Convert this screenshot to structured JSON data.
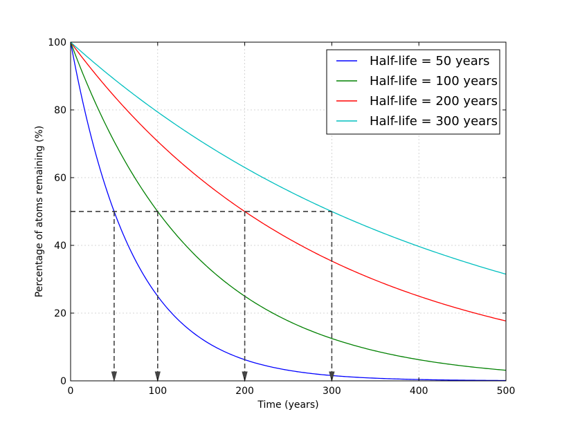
{
  "chart_data": {
    "type": "line",
    "title": "",
    "xlabel": "Time (years)",
    "ylabel": "Percentage of atoms remaining (%)",
    "xlim": [
      0,
      500
    ],
    "ylim": [
      0,
      100
    ],
    "xticks": [
      0,
      100,
      200,
      300,
      400,
      500
    ],
    "yticks": [
      0,
      20,
      40,
      60,
      80,
      100
    ],
    "grid": true,
    "legend_position": "top-right",
    "x": [
      0,
      25,
      50,
      75,
      100,
      125,
      150,
      175,
      200,
      225,
      250,
      275,
      300,
      325,
      350,
      375,
      400,
      425,
      450,
      475,
      500
    ],
    "series": [
      {
        "name": "Half-life = 50 years",
        "half_life": 50,
        "color": "#0000ff",
        "values": [
          100,
          70.71,
          50,
          35.36,
          25,
          17.68,
          12.5,
          8.84,
          6.25,
          4.42,
          3.13,
          2.21,
          1.56,
          1.1,
          0.78,
          0.55,
          0.39,
          0.28,
          0.2,
          0.14,
          0.1
        ]
      },
      {
        "name": "Half-life = 100 years",
        "half_life": 100,
        "color": "#008000",
        "values": [
          100,
          84.09,
          70.71,
          59.46,
          50,
          42.04,
          35.36,
          29.73,
          25,
          21.02,
          17.68,
          14.87,
          12.5,
          10.51,
          8.84,
          7.43,
          6.25,
          5.26,
          4.42,
          3.72,
          3.13
        ]
      },
      {
        "name": "Half-life = 200 years",
        "half_life": 200,
        "color": "#ff0000",
        "values": [
          100,
          91.7,
          84.09,
          77.11,
          70.71,
          64.84,
          59.46,
          54.53,
          50,
          45.85,
          42.04,
          38.56,
          35.36,
          32.42,
          29.73,
          27.26,
          25,
          22.93,
          21.02,
          19.28,
          17.68
        ]
      },
      {
        "name": "Half-life = 300 years",
        "half_life": 300,
        "color": "#00bfbf",
        "values": [
          100,
          94.39,
          89.09,
          84.09,
          79.37,
          74.92,
          70.71,
          66.74,
          63,
          59.46,
          56.12,
          52.97,
          50,
          47.19,
          44.54,
          42.04,
          39.69,
          37.46,
          35.36,
          33.37,
          31.5
        ]
      }
    ],
    "annotations": {
      "half_level_line": {
        "y": 50,
        "x_from": 0,
        "x_to": 300,
        "style": "dashed",
        "color": "#000000"
      },
      "half_life_arrows": [
        {
          "x": 50,
          "y_from": 50,
          "y_to": 0
        },
        {
          "x": 100,
          "y_from": 50,
          "y_to": 0
        },
        {
          "x": 200,
          "y_from": 50,
          "y_to": 0
        },
        {
          "x": 300,
          "y_from": 50,
          "y_to": 0
        }
      ],
      "arrow_color": "#444444"
    }
  }
}
